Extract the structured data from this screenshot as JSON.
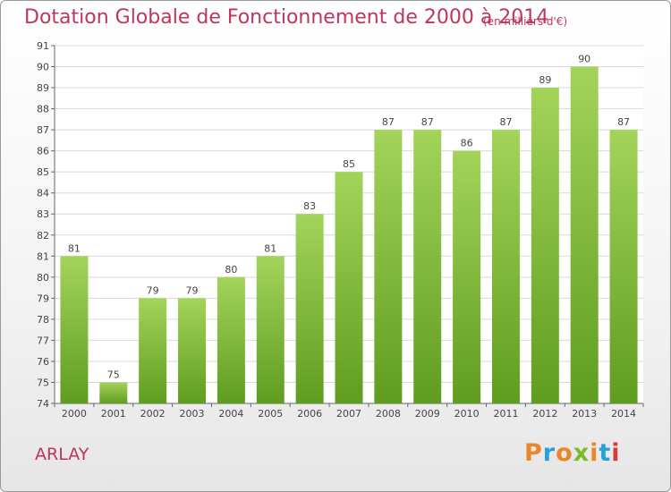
{
  "title": "Dotation Globale de Fonctionnement de 2000 à 2014",
  "subtitle": "(en milliers d'€)",
  "commune": "ARLAY",
  "logo": {
    "text": "Proxiti",
    "colors": [
      "#e8862a",
      "#2aa0d8",
      "#e8862a",
      "#7ab929",
      "#e8862a",
      "#2aa0d8",
      "#d83a3a"
    ]
  },
  "colors": {
    "title": "#c0355a",
    "bar_top": "#a3d45a",
    "bar_bottom": "#5f9d1f",
    "grid": "#d8d8d8",
    "axis": "#666666"
  },
  "chart_data": {
    "type": "bar",
    "categories": [
      "2000",
      "2001",
      "2002",
      "2003",
      "2004",
      "2005",
      "2006",
      "2007",
      "2008",
      "2009",
      "2010",
      "2011",
      "2012",
      "2013",
      "2014"
    ],
    "values": [
      81,
      75,
      79,
      79,
      80,
      81,
      83,
      85,
      87,
      87,
      86,
      87,
      89,
      90,
      87
    ],
    "ylim": [
      74,
      91
    ],
    "yticks": [
      74,
      75,
      76,
      77,
      78,
      79,
      80,
      81,
      82,
      83,
      84,
      85,
      86,
      87,
      88,
      89,
      90,
      91
    ],
    "grid": true,
    "data_labels": true
  }
}
